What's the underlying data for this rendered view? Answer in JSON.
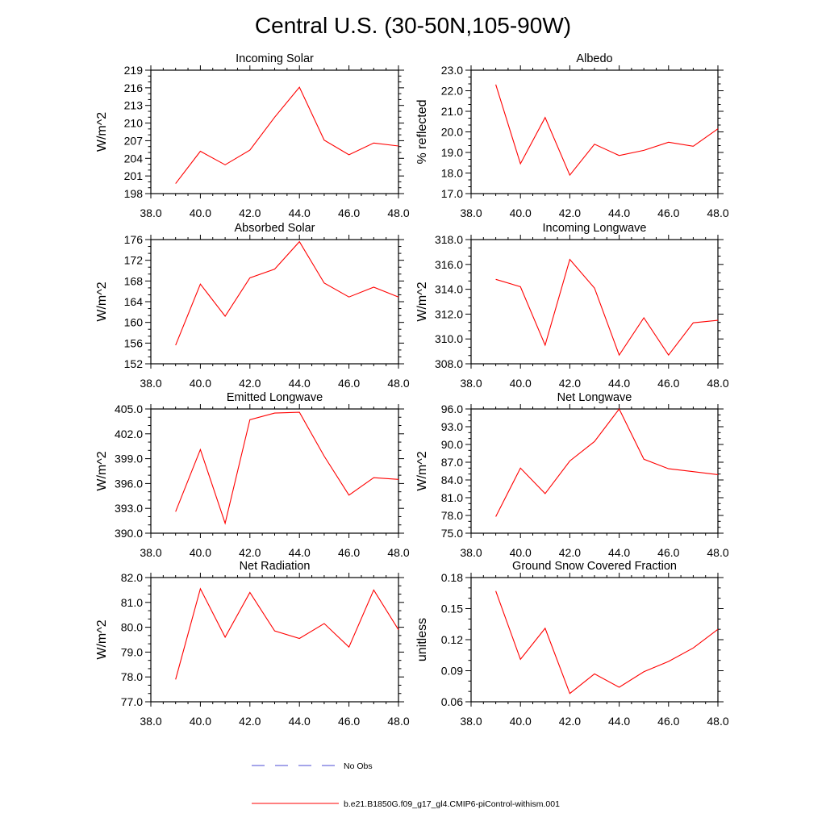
{
  "title": "Central U.S. (30-50N,105-90W)",
  "legend": [
    {
      "label": "No Obs",
      "color": "#4b4bd6",
      "style": "dashed"
    },
    {
      "label": "b.e21.B1850G.f09_g17_gl4.CMIP6-piControl-withism.001",
      "color": "#ff0000",
      "style": "solid"
    }
  ],
  "chart_data": [
    {
      "type": "line",
      "title": "Incoming Solar",
      "ylabel": "W/m^2",
      "xlim": [
        38.0,
        48.0
      ],
      "xticks": [
        "38.0",
        "40.0",
        "42.0",
        "44.0",
        "46.0",
        "48.0"
      ],
      "ylim": [
        198,
        219
      ],
      "yticks": [
        "198",
        "201",
        "204",
        "207",
        "210",
        "213",
        "216",
        "219"
      ],
      "series": [
        {
          "color": "#ff0000",
          "x": [
            39,
            40,
            41,
            42,
            43,
            44,
            45,
            46,
            47,
            48
          ],
          "y": [
            199.7,
            205.2,
            202.9,
            205.4,
            211.0,
            216.1,
            207.1,
            204.6,
            206.6,
            206.1
          ]
        }
      ]
    },
    {
      "type": "line",
      "title": "Albedo",
      "ylabel": "% reflected",
      "xlim": [
        38.0,
        48.0
      ],
      "xticks": [
        "38.0",
        "40.0",
        "42.0",
        "44.0",
        "46.0",
        "48.0"
      ],
      "ylim": [
        17.0,
        23.0
      ],
      "yticks": [
        "17.0",
        "18.0",
        "19.0",
        "20.0",
        "21.0",
        "22.0",
        "23.0"
      ],
      "series": [
        {
          "color": "#ff0000",
          "x": [
            39,
            40,
            41,
            42,
            43,
            44,
            45,
            46,
            47,
            48
          ],
          "y": [
            22.3,
            18.45,
            20.7,
            17.9,
            19.4,
            18.85,
            19.1,
            19.5,
            19.3,
            20.15
          ]
        }
      ]
    },
    {
      "type": "line",
      "title": "Absorbed Solar",
      "ylabel": "W/m^2",
      "xlim": [
        38.0,
        48.0
      ],
      "xticks": [
        "38.0",
        "40.0",
        "42.0",
        "44.0",
        "46.0",
        "48.0"
      ],
      "ylim": [
        152,
        176
      ],
      "yticks": [
        "152",
        "156",
        "160",
        "164",
        "168",
        "172",
        "176"
      ],
      "series": [
        {
          "color": "#ff0000",
          "x": [
            39,
            40,
            41,
            42,
            43,
            44,
            45,
            46,
            47,
            48
          ],
          "y": [
            155.6,
            167.4,
            161.2,
            168.6,
            170.3,
            175.6,
            167.6,
            164.9,
            166.8,
            164.9
          ]
        }
      ]
    },
    {
      "type": "line",
      "title": "Incoming Longwave",
      "ylabel": "W/m^2",
      "xlim": [
        38.0,
        48.0
      ],
      "xticks": [
        "38.0",
        "40.0",
        "42.0",
        "44.0",
        "46.0",
        "48.0"
      ],
      "ylim": [
        308.0,
        318.0
      ],
      "yticks": [
        "308.0",
        "310.0",
        "312.0",
        "314.0",
        "316.0",
        "318.0"
      ],
      "series": [
        {
          "color": "#ff0000",
          "x": [
            39,
            40,
            41,
            42,
            43,
            44,
            45,
            46,
            47,
            48
          ],
          "y": [
            314.8,
            314.2,
            309.5,
            316.4,
            314.1,
            308.7,
            311.7,
            308.7,
            311.3,
            311.5
          ]
        }
      ]
    },
    {
      "type": "line",
      "title": "Emitted Longwave",
      "ylabel": "W/m^2",
      "xlim": [
        38.0,
        48.0
      ],
      "xticks": [
        "38.0",
        "40.0",
        "42.0",
        "44.0",
        "46.0",
        "48.0"
      ],
      "ylim": [
        390.0,
        405.0
      ],
      "yticks": [
        "390.0",
        "393.0",
        "396.0",
        "399.0",
        "402.0",
        "405.0"
      ],
      "series": [
        {
          "color": "#ff0000",
          "x": [
            39,
            40,
            41,
            42,
            43,
            44,
            45,
            46,
            47,
            48
          ],
          "y": [
            392.6,
            400.1,
            391.2,
            403.7,
            404.5,
            404.6,
            399.3,
            394.6,
            396.7,
            396.5
          ]
        }
      ]
    },
    {
      "type": "line",
      "title": "Net Longwave",
      "ylabel": "W/m^2",
      "xlim": [
        38.0,
        48.0
      ],
      "xticks": [
        "38.0",
        "40.0",
        "42.0",
        "44.0",
        "46.0",
        "48.0"
      ],
      "ylim": [
        75.0,
        96.0
      ],
      "yticks": [
        "75.0",
        "78.0",
        "81.0",
        "84.0",
        "87.0",
        "90.0",
        "93.0",
        "96.0"
      ],
      "series": [
        {
          "color": "#ff0000",
          "x": [
            39,
            40,
            41,
            42,
            43,
            44,
            45,
            46,
            47,
            48
          ],
          "y": [
            77.8,
            86.0,
            81.7,
            87.2,
            90.5,
            96.0,
            87.5,
            85.9,
            85.4,
            84.9
          ]
        }
      ]
    },
    {
      "type": "line",
      "title": "Net Radiation",
      "ylabel": "W/m^2",
      "xlim": [
        38.0,
        48.0
      ],
      "xticks": [
        "38.0",
        "40.0",
        "42.0",
        "44.0",
        "46.0",
        "48.0"
      ],
      "ylim": [
        77.0,
        82.0
      ],
      "yticks": [
        "77.0",
        "78.0",
        "79.0",
        "80.0",
        "81.0",
        "82.0"
      ],
      "series": [
        {
          "color": "#ff0000",
          "x": [
            39,
            40,
            41,
            42,
            43,
            44,
            45,
            46,
            47,
            48
          ],
          "y": [
            77.9,
            81.55,
            79.6,
            81.4,
            79.85,
            79.55,
            80.15,
            79.2,
            81.5,
            79.9
          ]
        }
      ]
    },
    {
      "type": "line",
      "title": "Ground Snow Covered Fraction",
      "ylabel": "unitless",
      "xlim": [
        38.0,
        48.0
      ],
      "xticks": [
        "38.0",
        "40.0",
        "42.0",
        "44.0",
        "46.0",
        "48.0"
      ],
      "ylim": [
        0.06,
        0.18
      ],
      "yticks": [
        "0.06",
        "0.09",
        "0.12",
        "0.15",
        "0.18"
      ],
      "series": [
        {
          "color": "#ff0000",
          "x": [
            39,
            40,
            41,
            42,
            43,
            44,
            45,
            46,
            47,
            48
          ],
          "y": [
            0.167,
            0.101,
            0.131,
            0.068,
            0.087,
            0.074,
            0.089,
            0.099,
            0.112,
            0.13
          ]
        }
      ]
    }
  ]
}
